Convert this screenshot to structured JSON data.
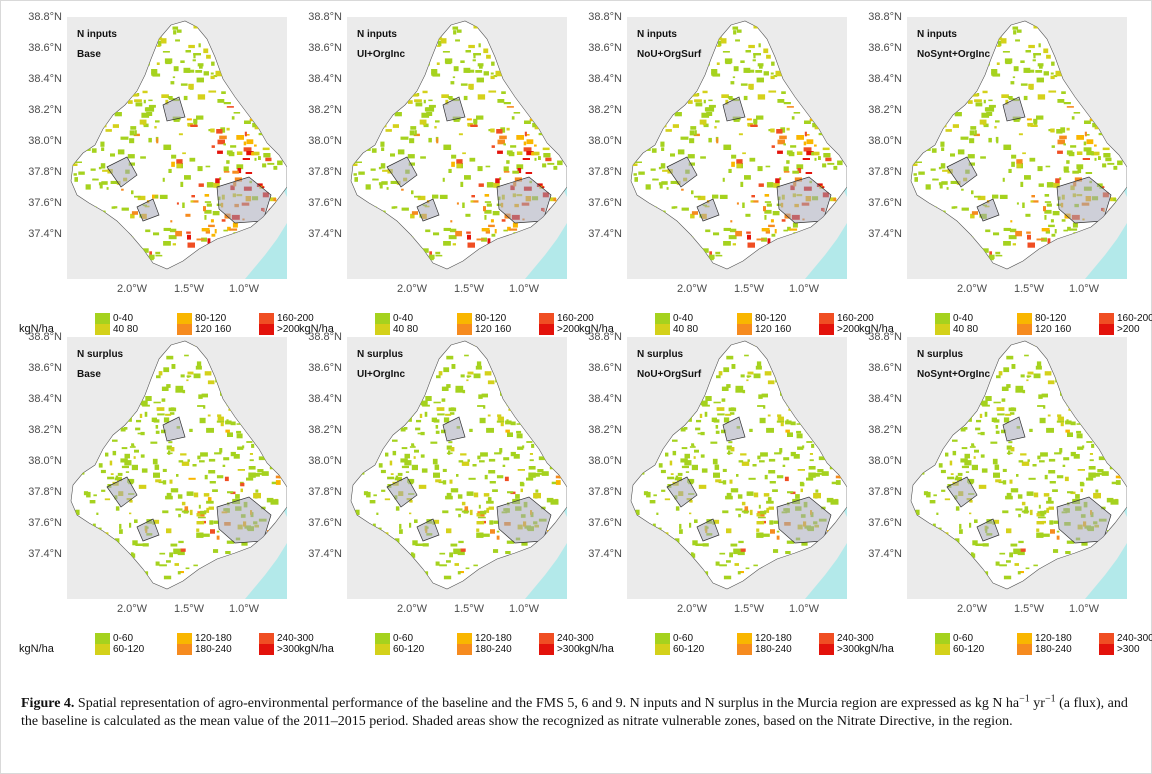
{
  "axes": {
    "lat_ticks": [
      "38.8°N",
      "38.6°N",
      "38.4°N",
      "38.2°N",
      "38.0°N",
      "37.8°N",
      "37.6°N",
      "37.4°N"
    ],
    "lon_ticks": [
      "2.0°W",
      "1.5°W",
      "1.0°W"
    ]
  },
  "colors": {
    "panel_bg": "#ebebeb",
    "land": "#ffffff",
    "sea": "#b3e9ea",
    "crop_low": "#a5d21e",
    "crop_low2": "#d4d11a",
    "crop_mid": "#f9b600",
    "crop_mid2": "#f68b1f",
    "crop_high": "#f04e23",
    "crop_max": "#e3120b",
    "vulnerable_zone": "#a6a8b8"
  },
  "rows": [
    {
      "name": "N inputs",
      "legend": {
        "unit": "kgN/ha",
        "classes": [
          "0-40",
          "40 80",
          "80-120",
          "120 160",
          "160-200",
          ">200"
        ]
      },
      "panels": [
        {
          "title": "N inputs",
          "scenario": "Base",
          "intensity": 1.0
        },
        {
          "title": "N inputs",
          "scenario": "UI+OrgInc",
          "intensity": 0.95
        },
        {
          "title": "N inputs",
          "scenario": "NoU+OrgSurf",
          "intensity": 0.9
        },
        {
          "title": "N inputs",
          "scenario": "NoSynt+OrgInc",
          "intensity": 0.45
        }
      ]
    },
    {
      "name": "N surplus",
      "legend": {
        "unit": "kgN/ha",
        "classes": [
          "0-60",
          "60-120",
          "120-180",
          "180-240",
          "240-300",
          ">300"
        ]
      },
      "panels": [
        {
          "title": "N surplus",
          "scenario": "Base",
          "intensity": 0.35
        },
        {
          "title": "N surplus",
          "scenario": "UI+OrgInc",
          "intensity": 0.3
        },
        {
          "title": "N surplus",
          "scenario": "NoU+OrgSurf",
          "intensity": 0.28
        },
        {
          "title": "N surplus",
          "scenario": "NoSynt+OrgInc",
          "intensity": 0.15
        }
      ]
    }
  ],
  "caption": {
    "label": "Figure 4.",
    "text_1": " Spatial representation of agro-environmental performance of the baseline and the FMS 5, 6 and 9. N inputs and N surplus in the Murcia region are expressed as kg N ha",
    "sup_1": "−1",
    "text_2": " yr",
    "sup_2": "−1",
    "text_3": " (a flux), and the baseline is calculated as the mean value of the 2011–2015 period. Shaded areas show the recognized as nitrate vulnerable zones, based on the Nitrate Directive, in the region."
  }
}
